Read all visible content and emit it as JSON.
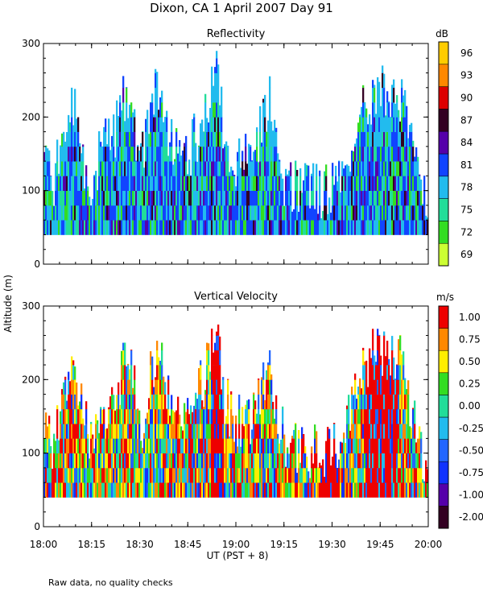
{
  "figure": {
    "title": "Dixon, CA   1 April 2007   Day  91",
    "ylabel": "Altitude (m)",
    "xlabel": "UT  (PST + 8)",
    "footnote": "Raw data, no quality checks",
    "x_ticks": [
      "18:00",
      "18:15",
      "18:30",
      "18:45",
      "19:00",
      "19:15",
      "19:30",
      "19:45",
      "20:00"
    ],
    "y_ticks": [
      "0",
      "100",
      "200",
      "300"
    ]
  },
  "chart_data": [
    {
      "type": "heatmap",
      "title": "Reflectivity",
      "units": "dB",
      "xlim": [
        "18:00",
        "20:00"
      ],
      "ylim": [
        0,
        300
      ],
      "colorbar": {
        "labels": [
          "69",
          "72",
          "75",
          "78",
          "81",
          "84",
          "87",
          "90",
          "93",
          "96"
        ],
        "colors": [
          "#ccff33",
          "#33dd22",
          "#22dd99",
          "#22bbee",
          "#1144ff",
          "#5500aa",
          "#330022",
          "#dd0000",
          "#ff8800",
          "#ffcc00"
        ]
      },
      "echo_base_m": 40,
      "echo_top_profile": [
        [
          0,
          140
        ],
        [
          3,
          110
        ],
        [
          6,
          180
        ],
        [
          9,
          220
        ],
        [
          12,
          150
        ],
        [
          15,
          100
        ],
        [
          18,
          160
        ],
        [
          22,
          180
        ],
        [
          26,
          240
        ],
        [
          30,
          130
        ],
        [
          35,
          240
        ],
        [
          40,
          160
        ],
        [
          45,
          150
        ],
        [
          50,
          200
        ],
        [
          53,
          280
        ],
        [
          56,
          180
        ],
        [
          60,
          140
        ],
        [
          65,
          150
        ],
        [
          70,
          230
        ],
        [
          75,
          110
        ],
        [
          80,
          100
        ],
        [
          85,
          100
        ],
        [
          90,
          100
        ],
        [
          95,
          160
        ],
        [
          100,
          220
        ],
        [
          105,
          240
        ],
        [
          110,
          240
        ],
        [
          115,
          160
        ],
        [
          118,
          100
        ],
        [
          120,
          90
        ]
      ],
      "dominant_levels_db": [
        78,
        81
      ]
    },
    {
      "type": "heatmap",
      "title": "Vertical Velocity",
      "units": "m/s",
      "xlim": [
        "18:00",
        "20:00"
      ],
      "ylim": [
        0,
        300
      ],
      "colorbar": {
        "labels": [
          "-2.00",
          "-1.00",
          "-0.75",
          "-0.50",
          "-0.25",
          "0.00",
          "0.25",
          "0.50",
          "0.75",
          "1.00"
        ],
        "colors": [
          "#330022",
          "#5500aa",
          "#1133ff",
          "#2266ff",
          "#22bbee",
          "#22dd99",
          "#33dd22",
          "#ffee00",
          "#ff8800",
          "#ee0000"
        ]
      },
      "echo_base_m": 40,
      "echo_top_profile": [
        [
          0,
          140
        ],
        [
          3,
          110
        ],
        [
          6,
          180
        ],
        [
          9,
          220
        ],
        [
          12,
          150
        ],
        [
          15,
          100
        ],
        [
          18,
          160
        ],
        [
          22,
          180
        ],
        [
          26,
          240
        ],
        [
          30,
          130
        ],
        [
          35,
          240
        ],
        [
          40,
          160
        ],
        [
          45,
          150
        ],
        [
          50,
          200
        ],
        [
          53,
          280
        ],
        [
          56,
          180
        ],
        [
          60,
          140
        ],
        [
          65,
          150
        ],
        [
          70,
          230
        ],
        [
          75,
          110
        ],
        [
          80,
          100
        ],
        [
          85,
          100
        ],
        [
          90,
          100
        ],
        [
          95,
          160
        ],
        [
          100,
          220
        ],
        [
          105,
          240
        ],
        [
          110,
          240
        ],
        [
          115,
          160
        ],
        [
          118,
          100
        ],
        [
          120,
          90
        ]
      ],
      "updraft_bands_minutes": [
        [
          52,
          56
        ],
        [
          86,
          92
        ],
        [
          100,
          110
        ]
      ]
    }
  ]
}
